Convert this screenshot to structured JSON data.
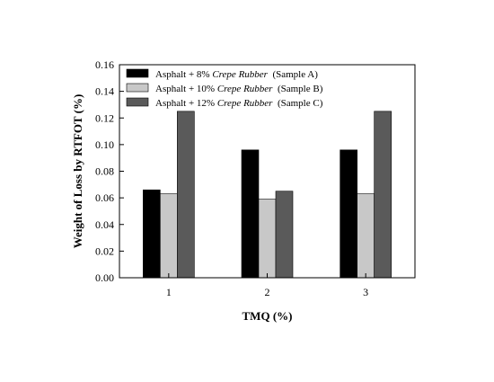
{
  "chart_data": {
    "type": "bar",
    "xlabel": "TMQ (%)",
    "ylabel": "Weight of Loss by RTFOT (%)",
    "categories": [
      "1",
      "2",
      "3"
    ],
    "ylim": [
      0,
      0.16
    ],
    "yticks": [
      "0.00",
      "0.02",
      "0.04",
      "0.06",
      "0.08",
      "0.10",
      "0.12",
      "0.14",
      "0.16"
    ],
    "grid": false,
    "legend_position": "top-left",
    "series": [
      {
        "name": "Asphalt + 8% Crepe Rubber (Sample A)",
        "legend": {
          "prefix": "Asphalt + 8% ",
          "italic": "Crepe Rubber",
          "suffix": "  (Sample A)"
        },
        "color": "#000000",
        "values": [
          0.066,
          0.096,
          0.096
        ]
      },
      {
        "name": "Asphalt + 10% Crepe Rubber (Sample B)",
        "legend": {
          "prefix": "Asphalt + 10% ",
          "italic": "Crepe Rubber",
          "suffix": "  (Sample B)"
        },
        "color": "#c8c8c8",
        "values": [
          0.063,
          0.059,
          0.063
        ]
      },
      {
        "name": "Asphalt + 12% Crepe Rubber (Sample C)",
        "legend": {
          "prefix": "Asphalt + 12% ",
          "italic": "Crepe Rubber",
          "suffix": "  (Sample C)"
        },
        "color": "#5a5a5a",
        "values": [
          0.125,
          0.065,
          0.125
        ]
      }
    ]
  }
}
